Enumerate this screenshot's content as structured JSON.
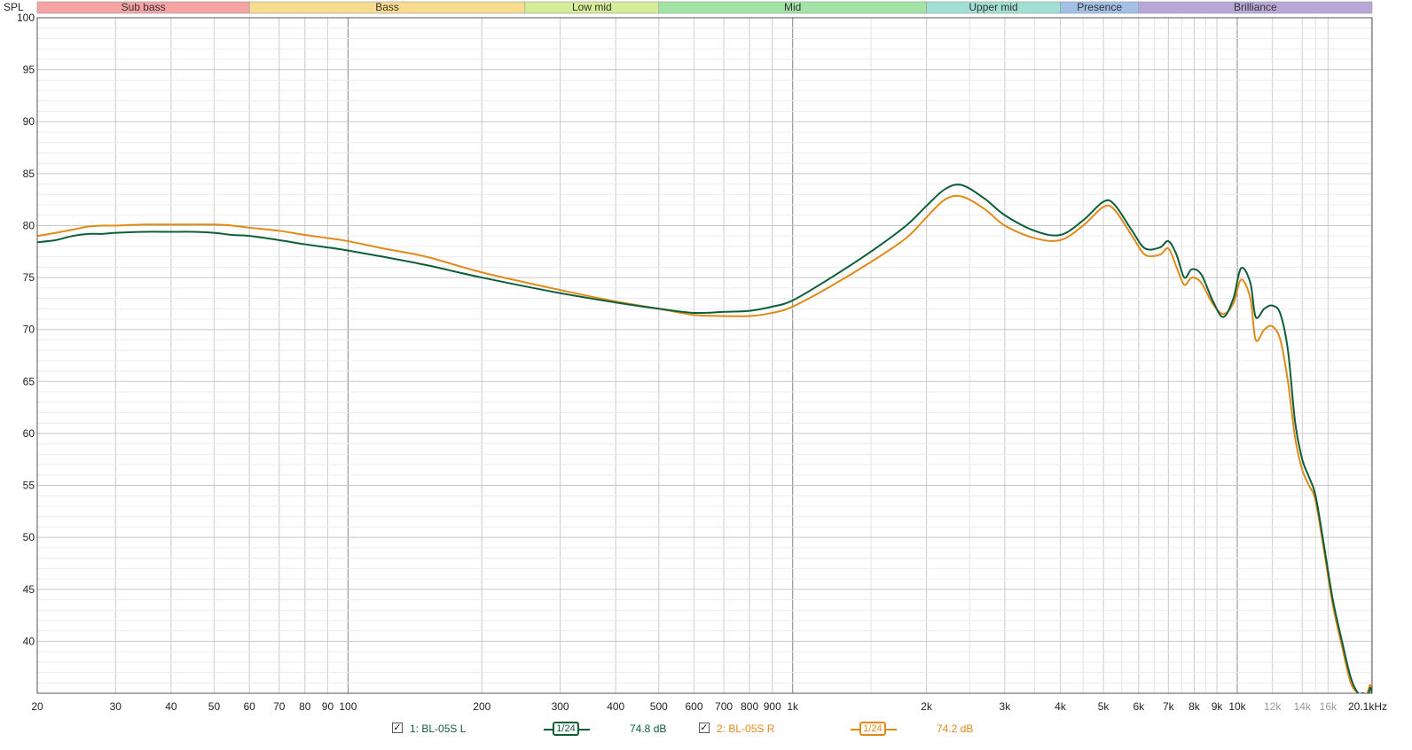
{
  "chart_data": {
    "type": "line",
    "ylabel": "SPL",
    "xunit_label": "20.1kHz",
    "xlim": [
      20,
      20100
    ],
    "ylim": [
      35,
      100
    ],
    "xscale": "log",
    "grid": true,
    "y_ticks": [
      40,
      45,
      50,
      55,
      60,
      65,
      70,
      75,
      80,
      85,
      90,
      95,
      100
    ],
    "y_tick_labels": [
      "40",
      "45",
      "50",
      "55",
      "60",
      "65",
      "70",
      "75",
      "80",
      "85",
      "90",
      "95",
      "100"
    ],
    "x_ticks": [
      20,
      30,
      40,
      50,
      60,
      70,
      80,
      90,
      100,
      200,
      300,
      400,
      500,
      600,
      700,
      800,
      900,
      1000,
      2000,
      3000,
      4000,
      5000,
      6000,
      7000,
      8000,
      9000,
      10000,
      12000,
      14000,
      16000
    ],
    "x_tick_labels": [
      "20",
      "30",
      "40",
      "50",
      "60",
      "70",
      "80",
      "90",
      "100",
      "200",
      "300",
      "400",
      "500",
      "600",
      "700",
      "800",
      "900",
      "1k",
      "2k",
      "3k",
      "4k",
      "5k",
      "6k",
      "7k",
      "8k",
      "9k",
      "10k",
      "12k",
      "14k",
      "16k"
    ],
    "x_tick_gray": [
      false,
      false,
      false,
      false,
      false,
      false,
      false,
      false,
      false,
      false,
      false,
      false,
      false,
      false,
      false,
      false,
      false,
      false,
      false,
      false,
      false,
      false,
      false,
      false,
      false,
      false,
      false,
      true,
      true,
      true
    ],
    "bands": [
      {
        "label": "Sub bass",
        "from": 20,
        "to": 60,
        "color": "#f5a3a3"
      },
      {
        "label": "Bass",
        "from": 60,
        "to": 250,
        "color": "#f7dc90"
      },
      {
        "label": "Low mid",
        "from": 250,
        "to": 500,
        "color": "#d6ec96"
      },
      {
        "label": "Mid",
        "from": 500,
        "to": 2000,
        "color": "#a2e3a6"
      },
      {
        "label": "Upper mid",
        "from": 2000,
        "to": 4000,
        "color": "#a0dfd2"
      },
      {
        "label": "Presence",
        "from": 4000,
        "to": 6000,
        "color": "#a2bfe6"
      },
      {
        "label": "Brilliance",
        "from": 6000,
        "to": 20100,
        "color": "#b8a8d8"
      }
    ],
    "series": [
      {
        "name": "1: BL-05S L",
        "color": "#0e5e3a",
        "smoothing": "1/24",
        "level": "74.8 dB",
        "x": [
          20,
          22,
          24,
          26,
          28,
          30,
          35,
          40,
          45,
          50,
          55,
          60,
          70,
          80,
          90,
          100,
          120,
          150,
          200,
          300,
          400,
          500,
          600,
          700,
          800,
          900,
          1000,
          1200,
          1500,
          1800,
          2000,
          2200,
          2400,
          2700,
          3000,
          3500,
          4000,
          4500,
          5000,
          5300,
          5800,
          6200,
          6700,
          7000,
          7300,
          7600,
          7900,
          8300,
          8800,
          9300,
          9800,
          10200,
          10700,
          11000,
          11500,
          12000,
          12500,
          13000,
          13500,
          14000,
          14500,
          15000,
          15700,
          16400,
          17200,
          18000,
          18700,
          19200,
          19600,
          19900,
          20100
        ],
        "y": [
          78.4,
          78.6,
          79.0,
          79.2,
          79.2,
          79.3,
          79.4,
          79.4,
          79.4,
          79.3,
          79.1,
          79.0,
          78.6,
          78.2,
          77.9,
          77.6,
          77.0,
          76.2,
          75.0,
          73.5,
          72.6,
          72.0,
          71.6,
          71.7,
          71.8,
          72.2,
          72.8,
          74.8,
          77.5,
          80.0,
          81.9,
          83.5,
          83.9,
          82.6,
          81.0,
          79.5,
          79.1,
          80.5,
          82.3,
          82.0,
          79.5,
          77.8,
          77.9,
          78.5,
          77.2,
          75.0,
          75.8,
          75.3,
          72.8,
          71.2,
          73.0,
          75.9,
          74.5,
          71.2,
          72.0,
          72.3,
          71.5,
          68.0,
          61.0,
          57.5,
          55.8,
          54.0,
          49.0,
          44.0,
          40.0,
          36.5,
          35.0,
          35.0,
          34.5,
          35.5,
          35.0
        ]
      },
      {
        "name": "2: BL-05S R",
        "color": "#e08a1a",
        "smoothing": "1/24",
        "level": "74.2 dB",
        "x": [
          20,
          22,
          24,
          26,
          28,
          30,
          35,
          40,
          45,
          50,
          55,
          60,
          70,
          80,
          90,
          100,
          120,
          150,
          200,
          300,
          400,
          500,
          600,
          700,
          800,
          900,
          1000,
          1200,
          1500,
          1800,
          2000,
          2200,
          2400,
          2700,
          3000,
          3500,
          4000,
          4500,
          5000,
          5300,
          5800,
          6200,
          6700,
          7000,
          7300,
          7600,
          7900,
          8300,
          8800,
          9300,
          9800,
          10200,
          10700,
          11000,
          11500,
          12000,
          12500,
          13000,
          13500,
          14000,
          14500,
          15000,
          15700,
          16400,
          17200,
          18000,
          18700,
          19200,
          19600,
          19900,
          20100
        ],
        "y": [
          79.0,
          79.3,
          79.6,
          79.9,
          80.0,
          80.0,
          80.1,
          80.1,
          80.1,
          80.1,
          80.0,
          79.8,
          79.5,
          79.1,
          78.8,
          78.5,
          77.8,
          77.0,
          75.5,
          73.8,
          72.7,
          72.0,
          71.4,
          71.3,
          71.3,
          71.6,
          72.2,
          74.0,
          76.5,
          78.8,
          80.8,
          82.5,
          82.8,
          81.6,
          80.0,
          78.8,
          78.6,
          80.0,
          81.8,
          81.5,
          79.0,
          77.2,
          77.2,
          77.8,
          76.0,
          74.3,
          75.0,
          74.5,
          72.5,
          71.5,
          72.5,
          74.8,
          73.0,
          69.0,
          70.0,
          70.3,
          69.0,
          65.0,
          59.5,
          56.5,
          55.0,
          53.5,
          48.5,
          43.5,
          39.5,
          36.0,
          35.0,
          34.5,
          35.0,
          35.8,
          35.0
        ]
      }
    ]
  },
  "legend": {
    "items": [
      {
        "checked": "✓",
        "label": "1: BL-05S L",
        "smooth": "1/24",
        "level": "74.8 dB",
        "color": "#0e5e3a"
      },
      {
        "checked": "✓",
        "label": "2: BL-05S R",
        "smooth": "1/24",
        "level": "74.2 dB",
        "color": "#e08a1a"
      }
    ]
  }
}
